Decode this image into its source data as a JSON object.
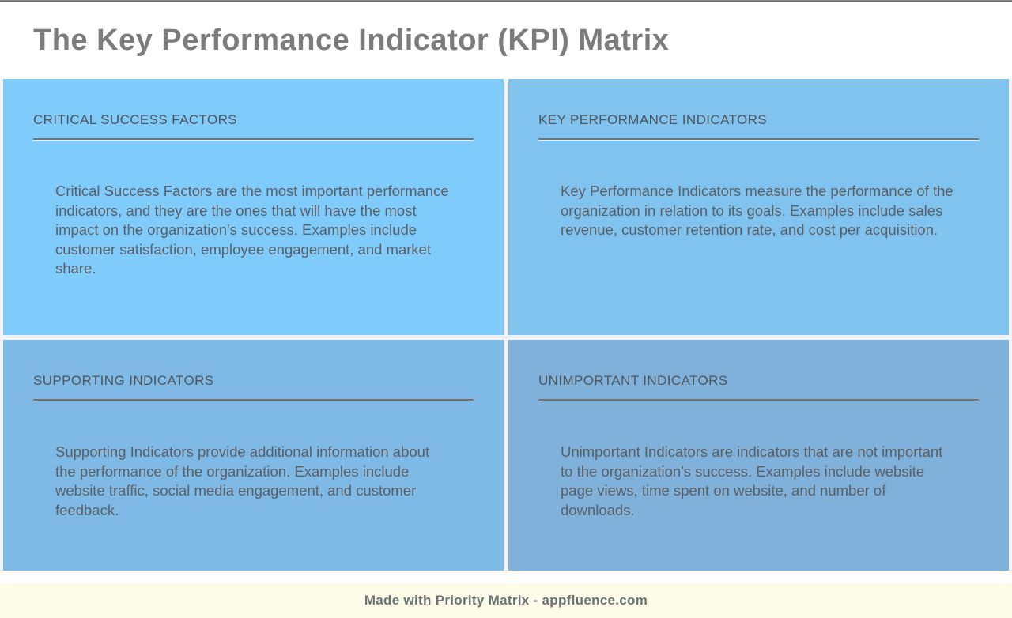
{
  "page": {
    "title": "The Key Performance Indicator (KPI) Matrix"
  },
  "quadrants": [
    {
      "id": "critical-success-factors",
      "title": "CRITICAL SUCCESS FACTORS",
      "body": "Critical Success Factors are the most important performance indicators, and they are the ones that will have the most impact on the organization's success. Examples include customer satisfaction, employee engagement, and market share.",
      "background": "#7fcbfb"
    },
    {
      "id": "key-performance-indicators",
      "title": "KEY PERFORMANCE INDICATORS",
      "body": "Key Performance Indicators measure the performance of the organization in relation to its goals. Examples include sales revenue, customer retention rate, and cost per acquisition.",
      "background": "#81c3ef"
    },
    {
      "id": "supporting-indicators",
      "title": "SUPPORTING INDICATORS",
      "body": "Supporting Indicators provide additional information about the performance of the organization. Examples include website traffic, social media engagement, and customer feedback.",
      "background": "#7fb9e5"
    },
    {
      "id": "unimportant-indicators",
      "title": "UNIMPORTANT INDICATORS",
      "body": "Unimportant Indicators are indicators that are not important to the organization's success. Examples include website page views, time spent on website, and number of downloads.",
      "background": "#80b1db"
    }
  ],
  "footer": {
    "credit": "Made with Priority Matrix - appfluence.com",
    "background": "#fcfce9"
  },
  "colors": {
    "title_text": "#7c7c7c",
    "quadrant_header_text": "#50565b",
    "quadrant_body_text": "#5b6065",
    "grid_gap": "#f0f4f8",
    "top_edge": "#2e2e2e"
  }
}
